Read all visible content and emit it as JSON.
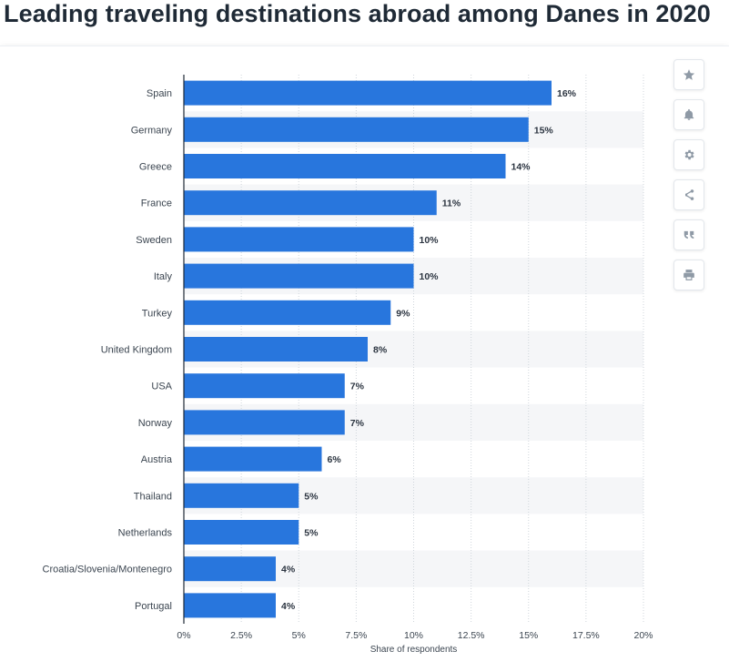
{
  "title": "Leading traveling destinations abroad among Danes in 2020",
  "toolbar": {
    "icons": [
      "star-icon",
      "bell-icon",
      "gear-icon",
      "share-icon",
      "quote-icon",
      "print-icon"
    ]
  },
  "colors": {
    "bar": "#2876dd",
    "band": "#f5f6f8",
    "grid": "#cfd5db",
    "axis": "#1f2a36",
    "label": "#3b4550"
  },
  "chart_data": {
    "type": "bar",
    "orientation": "horizontal",
    "categories": [
      "Spain",
      "Germany",
      "Greece",
      "France",
      "Sweden",
      "Italy",
      "Turkey",
      "United Kingdom",
      "USA",
      "Norway",
      "Austria",
      "Thailand",
      "Netherlands",
      "Croatia/Slovenia/Montenegro",
      "Portugal"
    ],
    "values": [
      16,
      15,
      14,
      11,
      10,
      10,
      9,
      8,
      7,
      7,
      6,
      5,
      5,
      4,
      4
    ],
    "value_labels": [
      "16%",
      "15%",
      "14%",
      "11%",
      "10%",
      "10%",
      "9%",
      "8%",
      "7%",
      "7%",
      "6%",
      "5%",
      "5%",
      "4%",
      "4%"
    ],
    "xlabel": "Share of respondents",
    "ylabel": "",
    "xlim": [
      0,
      20
    ],
    "x_ticks": [
      0,
      2.5,
      5,
      7.5,
      10,
      12.5,
      15,
      17.5,
      20
    ],
    "x_tick_labels": [
      "0%",
      "2.5%",
      "5%",
      "7.5%",
      "10%",
      "12.5%",
      "15%",
      "17.5%",
      "20%"
    ],
    "grid": true,
    "legend": "none"
  }
}
